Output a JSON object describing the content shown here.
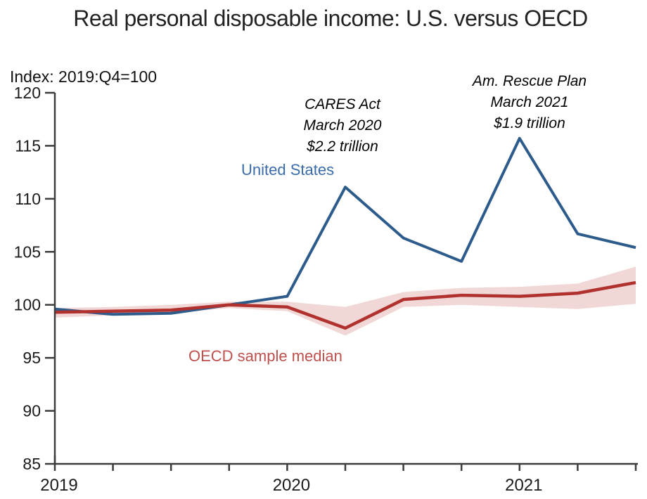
{
  "chart_data": {
    "type": "line",
    "title": "Real personal disposable income: U.S. versus OECD",
    "index_note": "Index: 2019:Q4=100",
    "x_quarters": [
      "2019:Q1",
      "2019:Q2",
      "2019:Q3",
      "2019:Q4",
      "2020:Q1",
      "2020:Q2",
      "2020:Q3",
      "2020:Q4",
      "2021:Q1",
      "2021:Q2",
      "2021:Q3"
    ],
    "x_year_ticks": [
      {
        "label": "2019",
        "quarter_index": 0
      },
      {
        "label": "2020",
        "quarter_index": 4
      },
      {
        "label": "2021",
        "quarter_index": 8
      }
    ],
    "ylim": [
      85,
      120
    ],
    "y_ticks": [
      85,
      90,
      95,
      100,
      105,
      110,
      115,
      120
    ],
    "grid": false,
    "legend": "inline-labels",
    "series": [
      {
        "name": "United States",
        "color": "#2D5C8C",
        "label_color": "#3A6CAC",
        "values": [
          99.6,
          99.1,
          99.2,
          100.0,
          100.8,
          111.1,
          106.3,
          104.1,
          115.7,
          106.7,
          105.4
        ]
      },
      {
        "name": "OECD sample median",
        "color": "#B1312E",
        "label_color": "#C0504D",
        "values": [
          99.3,
          99.4,
          99.5,
          100.0,
          99.8,
          97.8,
          100.5,
          100.9,
          100.8,
          101.1,
          102.1
        ]
      }
    ],
    "band": {
      "around_series": "OECD sample median",
      "color": "#F1D7D5",
      "lower": [
        98.8,
        99.0,
        99.2,
        99.7,
        99.4,
        97.1,
        99.8,
        100.0,
        99.8,
        99.6,
        100.1
      ],
      "upper": [
        99.7,
        99.8,
        100.0,
        100.3,
        100.3,
        99.8,
        101.2,
        101.6,
        101.7,
        102.0,
        103.6
      ]
    },
    "annotations": [
      {
        "lines": [
          "CARES Act",
          "March 2020",
          "$2.2 trillion"
        ]
      },
      {
        "lines": [
          "Am. Rescue Plan",
          "March 2021",
          "$1.9 trillion"
        ]
      }
    ],
    "colors": {
      "axis": "#3C3C3C",
      "tick_text": "#1B1B1B",
      "title_text": "#222222",
      "annotation_text": "#000000",
      "background": "#FFFFFF"
    }
  }
}
